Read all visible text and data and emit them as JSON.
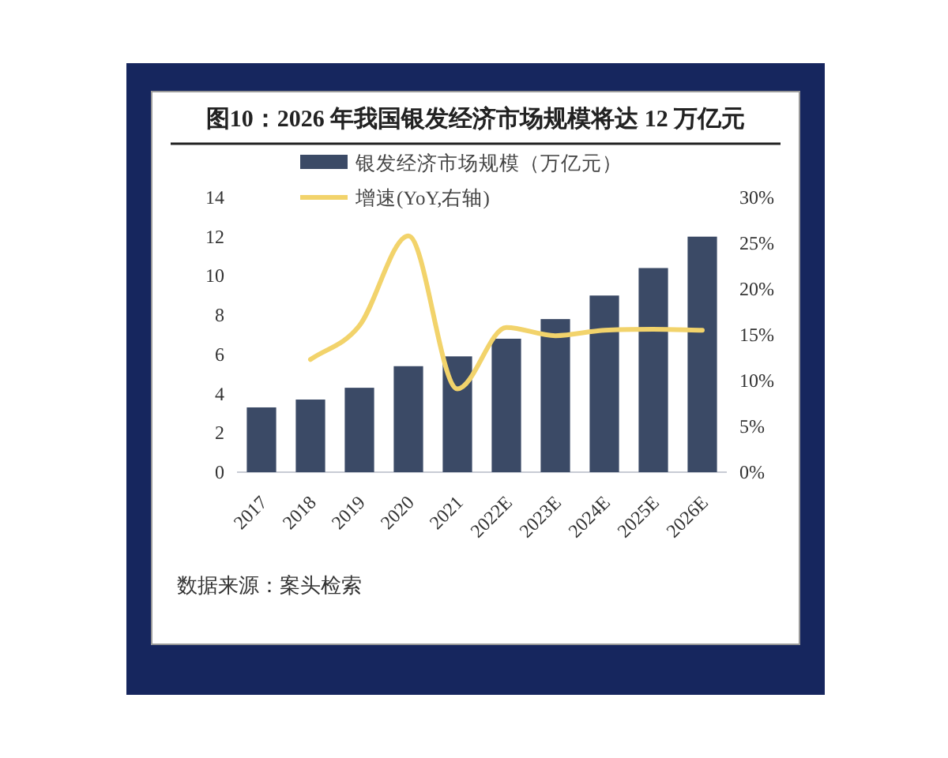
{
  "chart_data": {
    "type": "bar",
    "title": "图10：2026 年我国银发经济市场规模将达 12 万亿元",
    "categories": [
      "2017",
      "2018",
      "2019",
      "2020",
      "2021",
      "2022E",
      "2023E",
      "2024E",
      "2025E",
      "2026E"
    ],
    "series": [
      {
        "name": "银发经济市场规模（万亿元）",
        "color": "#3b4a66",
        "values": [
          3.3,
          3.7,
          4.3,
          5.4,
          5.9,
          6.8,
          7.8,
          9.0,
          10.4,
          12.0
        ]
      },
      {
        "name": "增速(YoY,右轴)",
        "type": "line",
        "axis": "y2",
        "color": "#f2d36b",
        "values": [
          null,
          12.3,
          16.0,
          25.8,
          9.1,
          15.8,
          14.9,
          15.5,
          15.6,
          15.5
        ]
      }
    ],
    "ylim": [
      0,
      14
    ],
    "yticks": [
      0,
      2,
      4,
      6,
      8,
      10,
      12,
      14
    ],
    "y2lim": [
      0,
      30
    ],
    "y2ticks": [
      {
        "value": 0,
        "label": "0%"
      },
      {
        "value": 5,
        "label": "5%"
      },
      {
        "value": 10,
        "label": "10%"
      },
      {
        "value": 15,
        "label": "15%"
      },
      {
        "value": 20,
        "label": "20%"
      },
      {
        "value": 25,
        "label": "25%"
      },
      {
        "value": 30,
        "label": "30%"
      }
    ],
    "legend": "top",
    "grid": false,
    "annotations": [
      "数据来源：案头检索"
    ]
  }
}
